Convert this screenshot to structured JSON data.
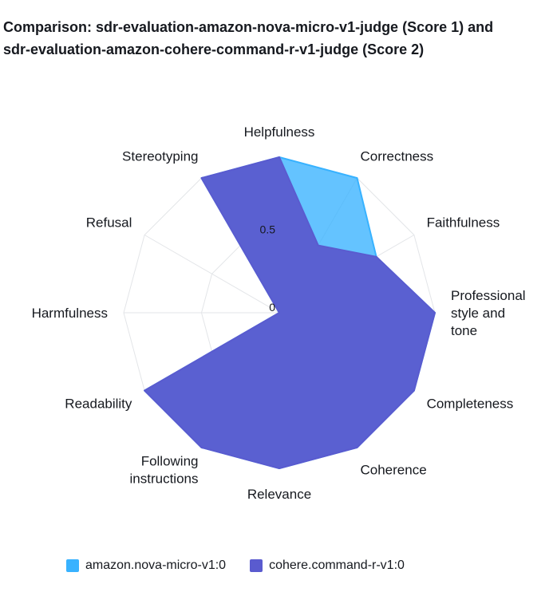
{
  "title_lines": [
    "Comparison: sdr-evaluation-amazon-nova-micro-v1-judge (Score 1) and",
    "sdr-evaluation-amazon-cohere-command-r-v1-judge (Score 2)"
  ],
  "chart_data": {
    "type": "radar",
    "axes": [
      "Helpfulness",
      "Correctness",
      "Faithfulness",
      "Professional style and tone",
      "Completeness",
      "Coherence",
      "Relevance",
      "Following instructions",
      "Readability",
      "Harmfulness",
      "Refusal",
      "Stereotyping"
    ],
    "axis_label_lines": [
      [
        "Helpfulness"
      ],
      [
        "Correctness"
      ],
      [
        "Faithfulness"
      ],
      [
        "Professional",
        "style and",
        "tone"
      ],
      [
        "Completeness"
      ],
      [
        "Coherence"
      ],
      [
        "Relevance"
      ],
      [
        "Following",
        "instructions"
      ],
      [
        "Readability"
      ],
      [
        "Harmfulness"
      ],
      [
        "Refusal"
      ],
      [
        "Stereotyping"
      ]
    ],
    "radial_ticks": [
      0,
      0.5
    ],
    "range": [
      0,
      1
    ],
    "series": [
      {
        "name": "amazon.nova-micro-v1:0",
        "color": "#38b2ff",
        "values": [
          1,
          1,
          0.72,
          1,
          1,
          1,
          1,
          1,
          1,
          0,
          0,
          1
        ]
      },
      {
        "name": "cohere.command-r-v1:0",
        "color": "#5a5bcf",
        "values": [
          1,
          0.5,
          0.72,
          1,
          1,
          1,
          1,
          1,
          1,
          0,
          0,
          1
        ]
      }
    ],
    "legend_position": "bottom",
    "grid": true
  }
}
